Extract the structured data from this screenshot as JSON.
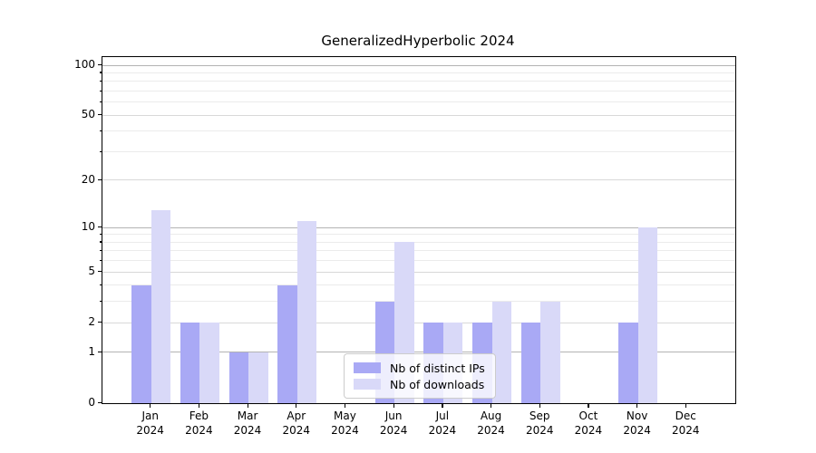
{
  "title": "GeneralizedHyperbolic 2024",
  "chart_data": {
    "type": "bar",
    "categories": [
      "Jan 2024",
      "Feb 2024",
      "Mar 2024",
      "Apr 2024",
      "May 2024",
      "Jun 2024",
      "Jul 2024",
      "Aug 2024",
      "Sep 2024",
      "Oct 2024",
      "Nov 2024",
      "Dec 2024"
    ],
    "series": [
      {
        "name": "Nb of distinct IPs",
        "color": "#a9a9f5",
        "values": [
          4,
          2,
          1,
          4,
          0,
          3,
          2,
          2,
          2,
          0,
          2,
          0
        ]
      },
      {
        "name": "Nb of downloads",
        "color": "#d9d9f8",
        "values": [
          13,
          2,
          1,
          11,
          0,
          8,
          2,
          3,
          3,
          0,
          10,
          0
        ]
      }
    ],
    "title": "GeneralizedHyperbolic 2024",
    "xlabel": "",
    "ylabel": "",
    "yscale": "log1p",
    "ylim": [
      0,
      112
    ],
    "yticks": [
      0,
      1,
      2,
      5,
      10,
      20,
      50,
      100
    ],
    "minor_yticks": [
      3,
      4,
      6,
      7,
      8,
      9,
      30,
      40,
      60,
      70,
      80,
      90
    ],
    "major_gridlines": [
      1,
      10,
      100
    ],
    "grid": true,
    "legend_position": "lower-center-inside"
  },
  "legend": {
    "items": [
      {
        "label": "Nb of distinct IPs"
      },
      {
        "label": "Nb of downloads"
      }
    ]
  },
  "colors": {
    "distinct_ips": "#a9a9f5",
    "downloads": "#d9d9f8",
    "grid_major": "#b3b3b3",
    "grid_minor": "#ebebeb",
    "axis": "#000000",
    "legend_border": "#cccccc"
  }
}
